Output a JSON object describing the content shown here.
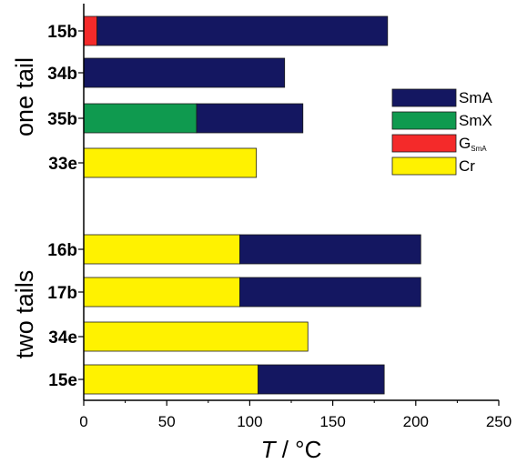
{
  "chart_data": {
    "type": "bar",
    "orientation": "horizontal",
    "stacked": true,
    "xlabel_var": "T",
    "xlabel_unit": " / °C",
    "xlim": [
      0,
      250
    ],
    "x_ticks": [
      "0",
      "50",
      "100",
      "150",
      "200",
      "250"
    ],
    "grid": false,
    "legend_position": "right",
    "groups": [
      {
        "label": "one tail",
        "categories": [
          "15b",
          "34b",
          "35b",
          "33e"
        ]
      },
      {
        "label": "two tails",
        "categories": [
          "16b",
          "17b",
          "34e",
          "15e"
        ]
      }
    ],
    "series": [
      {
        "name": "SmA",
        "color": "#141761"
      },
      {
        "name": "SmX",
        "color": "#0f9a4f"
      },
      {
        "name": "G",
        "name_sub": "SmA",
        "color": "#f42a2a"
      },
      {
        "name": "Cr",
        "color": "#fff200"
      }
    ],
    "bars": [
      {
        "category": "15b",
        "segments": [
          {
            "phase": "G",
            "from": 0,
            "to": 8
          },
          {
            "phase": "SmA",
            "from": 8,
            "to": 183
          }
        ]
      },
      {
        "category": "34b",
        "segments": [
          {
            "phase": "SmA",
            "from": 0,
            "to": 121
          }
        ]
      },
      {
        "category": "35b",
        "segments": [
          {
            "phase": "SmX",
            "from": 0,
            "to": 68
          },
          {
            "phase": "SmA",
            "from": 68,
            "to": 132
          }
        ]
      },
      {
        "category": "33e",
        "segments": [
          {
            "phase": "Cr",
            "from": 0,
            "to": 104
          }
        ]
      },
      {
        "category": "16b",
        "segments": [
          {
            "phase": "Cr",
            "from": 0,
            "to": 94
          },
          {
            "phase": "SmA",
            "from": 94,
            "to": 203
          }
        ]
      },
      {
        "category": "17b",
        "segments": [
          {
            "phase": "Cr",
            "from": 0,
            "to": 94
          },
          {
            "phase": "SmA",
            "from": 94,
            "to": 203
          }
        ]
      },
      {
        "category": "34e",
        "segments": [
          {
            "phase": "Cr",
            "from": 0,
            "to": 135
          }
        ]
      },
      {
        "category": "15e",
        "segments": [
          {
            "phase": "Cr",
            "from": 0,
            "to": 105
          },
          {
            "phase": "SmA",
            "from": 105,
            "to": 181
          }
        ]
      }
    ]
  }
}
